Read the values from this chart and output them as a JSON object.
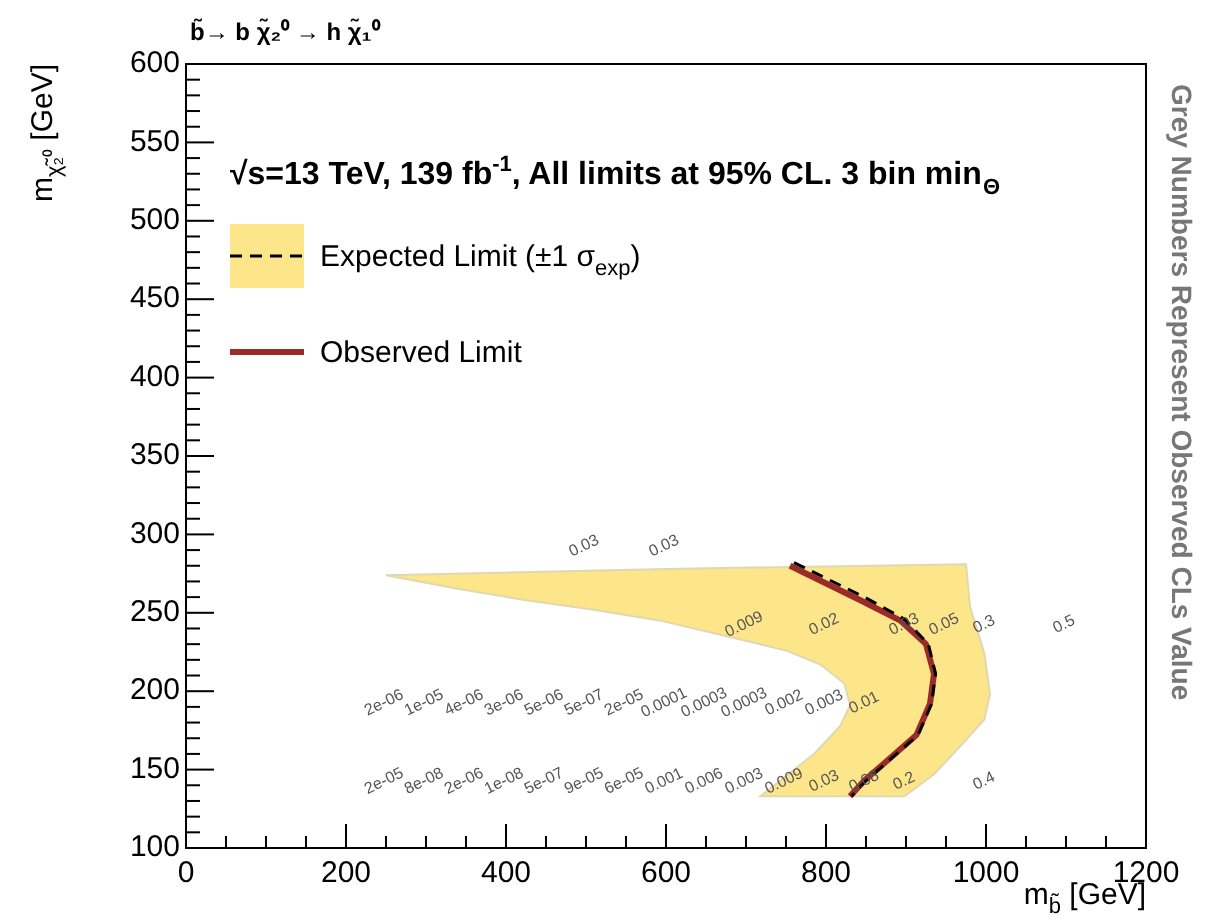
{
  "chart_data": {
    "type": "line",
    "title": "b̃→ b χ̃₂⁰ → h χ̃₁⁰",
    "subtitle": "√s=13 TeV, 139 fb$^{-1}$, All limits at 95% CL. 3 bin min$_{Θ}$",
    "xlabel": "m$_{b̃}$ [GeV]",
    "ylabel": "m$_{χ̃₂⁰}$ [GeV]",
    "legend": "top left",
    "marker": "none",
    "xlim": [
      0,
      1200
    ],
    "ylim": [
      100,
      600
    ],
    "xticks": [
      0,
      {
        "value": 50,
        "label": null
      },
      {
        "value": 100,
        "label": null
      },
      {
        "value": 150,
        "label": null
      },
      200,
      {
        "value": 250,
        "label": null
      },
      {
        "value": 300,
        "label": null
      },
      {
        "value": 350,
        "label": null
      },
      400,
      {
        "value": 450,
        "label": null
      },
      {
        "value": 500,
        "label": null
      },
      {
        "value": 550,
        "label": null
      },
      600,
      {
        "value": 650,
        "label": null
      },
      {
        "value": 700,
        "label": null
      },
      {
        "value": 750,
        "label": null
      },
      800,
      {
        "value": 850,
        "label": null
      },
      {
        "value": 900,
        "label": null
      },
      {
        "value": 950,
        "label": null
      },
      1000,
      {
        "value": 1050,
        "label": null
      },
      {
        "value": 1100,
        "label": null
      },
      {
        "value": 1150,
        "label": null
      },
      1200
    ],
    "yticks": [
      100,
      {
        "value": 110,
        "label": null
      },
      {
        "value": 120,
        "label": null
      },
      {
        "value": 130,
        "label": null
      },
      {
        "value": 140,
        "label": null
      },
      150,
      {
        "value": 160,
        "label": null
      },
      {
        "value": 170,
        "label": null
      },
      {
        "value": 180,
        "label": null
      },
      {
        "value": 190,
        "label": null
      },
      200,
      {
        "value": 210,
        "label": null
      },
      {
        "value": 220,
        "label": null
      },
      {
        "value": 230,
        "label": null
      },
      {
        "value": 240,
        "label": null
      },
      250,
      {
        "value": 260,
        "label": null
      },
      {
        "value": 270,
        "label": null
      },
      {
        "value": 280,
        "label": null
      },
      {
        "value": 290,
        "label": null
      },
      300,
      {
        "value": 310,
        "label": null
      },
      {
        "value": 320,
        "label": null
      },
      {
        "value": 330,
        "label": null
      },
      {
        "value": 340,
        "label": null
      },
      350,
      {
        "value": 360,
        "label": null
      },
      {
        "value": 370,
        "label": null
      },
      {
        "value": 380,
        "label": null
      },
      {
        "value": 390,
        "label": null
      },
      400,
      {
        "value": 410,
        "label": null
      },
      {
        "value": 420,
        "label": null
      },
      {
        "value": 430,
        "label": null
      },
      {
        "value": 440,
        "label": null
      },
      450,
      {
        "value": 460,
        "label": null
      },
      {
        "value": 470,
        "label": null
      },
      {
        "value": 480,
        "label": null
      },
      {
        "value": 490,
        "label": null
      },
      500,
      {
        "value": 510,
        "label": null
      },
      {
        "value": 520,
        "label": null
      },
      {
        "value": 530,
        "label": null
      },
      {
        "value": 540,
        "label": null
      },
      550,
      {
        "value": 560,
        "label": null
      },
      {
        "value": 570,
        "label": null
      },
      {
        "value": 580,
        "label": null
      },
      {
        "value": 590,
        "label": null
      },
      600
    ],
    "series": [
      {
        "type": "area",
        "color": "#fde68a",
        "x": [
          250,
          600,
          975,
          980,
          998,
          1005,
          998,
          968,
          935,
          898,
          718,
          743,
          785,
          818,
          830,
          823,
          793,
          750,
          693,
          593,
          510,
          425,
          343,
          250
        ],
        "values": [
          274,
          278,
          281,
          254,
          224,
          198,
          182,
          165,
          147,
          133,
          133,
          143,
          160,
          178,
          191,
          205,
          217,
          226,
          233,
          245,
          252,
          258,
          265,
          274
        ]
      },
      {
        "type": "line",
        "name": "Expected Limit (±1 σ$_{exp}$)",
        "color": "#000000",
        "line_style": "dashed",
        "x": [
          760,
          848,
          898,
          928,
          937,
          932,
          915,
          877,
          850,
          832
        ],
        "values": [
          282,
          260,
          246,
          230,
          211,
          192,
          172,
          155,
          143,
          133
        ]
      },
      {
        "type": "line",
        "name": "Observed Limit",
        "color": "#9b2a2a",
        "line_style": "solid",
        "x": [
          755,
          843,
          893,
          925,
          935,
          930,
          913,
          875,
          848,
          830
        ],
        "values": [
          280,
          258,
          245,
          230,
          211,
          192,
          172,
          155,
          143,
          133
        ]
      }
    ],
    "annotations": [
      "Grey Numbers Represent Observed CLs Value",
      "2e-05",
      "8e-08",
      "2e-06",
      "1e-08",
      "5e-07",
      "9e-05",
      "6e-05",
      "0.001",
      "0.006",
      "0.003",
      "0.009",
      "0.03",
      "0.08",
      "0.2",
      "0.4",
      "2e-06",
      "1e-05",
      "4e-06",
      "3e-06",
      "5e-06",
      "5e-07",
      "2e-05",
      "0.0001",
      "0.0003",
      "0.0003",
      "0.002",
      "0.003",
      "0.01",
      "0.009",
      "0.02",
      "0.03",
      "0.05",
      "0.3",
      "0.5",
      "0.03",
      "0.03"
    ]
  }
}
